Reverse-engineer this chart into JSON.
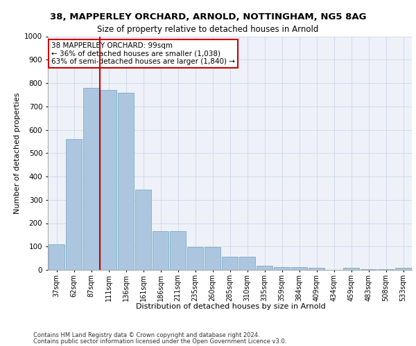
{
  "title_line1": "38, MAPPERLEY ORCHARD, ARNOLD, NOTTINGHAM, NG5 8AG",
  "title_line2": "Size of property relative to detached houses in Arnold",
  "xlabel": "Distribution of detached houses by size in Arnold",
  "ylabel": "Number of detached properties",
  "categories": [
    "37sqm",
    "62sqm",
    "87sqm",
    "111sqm",
    "136sqm",
    "161sqm",
    "186sqm",
    "211sqm",
    "235sqm",
    "260sqm",
    "285sqm",
    "310sqm",
    "335sqm",
    "359sqm",
    "384sqm",
    "409sqm",
    "434sqm",
    "459sqm",
    "483sqm",
    "508sqm",
    "533sqm"
  ],
  "values": [
    110,
    560,
    780,
    770,
    760,
    345,
    165,
    165,
    98,
    98,
    55,
    55,
    18,
    13,
    13,
    10,
    0,
    8,
    3,
    3,
    8
  ],
  "bar_color": "#adc6e0",
  "bar_edge_color": "#7aaac8",
  "grid_color": "#ccd6e8",
  "background_color": "#eef2f8",
  "red_line_color": "#cc0000",
  "red_line_x": 2.5,
  "annotation_text": "38 MAPPERLEY ORCHARD: 99sqm\n← 36% of detached houses are smaller (1,038)\n63% of semi-detached houses are larger (1,840) →",
  "annotation_box_color": "#cc0000",
  "ylim": [
    0,
    1000
  ],
  "yticks": [
    0,
    100,
    200,
    300,
    400,
    500,
    600,
    700,
    800,
    900,
    1000
  ],
  "footer_line1": "Contains HM Land Registry data © Crown copyright and database right 2024.",
  "footer_line2": "Contains public sector information licensed under the Open Government Licence v3.0."
}
